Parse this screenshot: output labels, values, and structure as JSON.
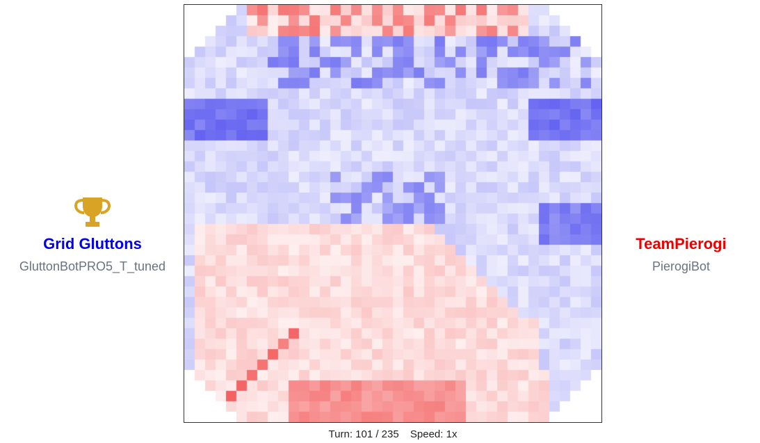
{
  "teams": {
    "left": {
      "name": "Grid Gluttons",
      "bot": "GluttonBotPRO5_T_tuned",
      "color": "#0000ee",
      "winner_icon": "trophy-icon",
      "trophy_color": "#d9a326"
    },
    "right": {
      "name": "TeamPierogi",
      "bot": "PierogiBot",
      "color": "#ee0000"
    }
  },
  "status": {
    "turn_text": "Turn: 101 / 235",
    "speed_text": "Speed: 1x",
    "turn": 101,
    "total_turns": 235,
    "speed": "1x"
  },
  "board": {
    "grid_size": 40,
    "colors": {
      "blue": "#2a2ae6",
      "red": "#f03b3b",
      "empty": "#ffffff"
    }
  }
}
